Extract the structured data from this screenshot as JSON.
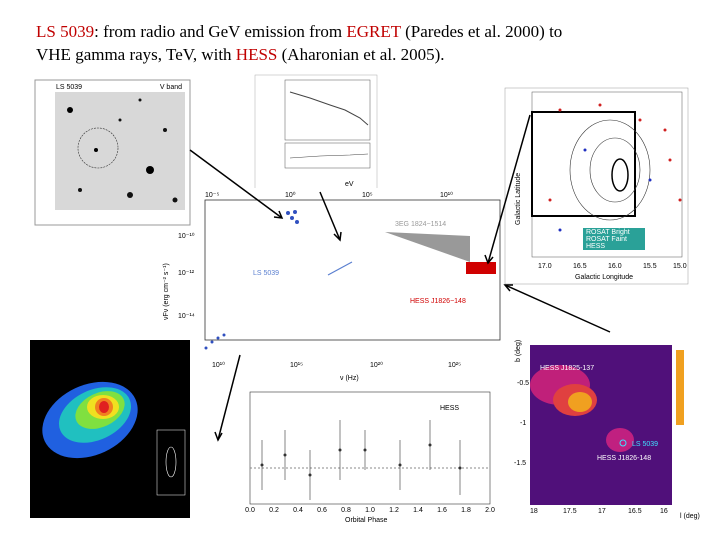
{
  "header": {
    "lines": [
      [
        {
          "text": "LS 5039",
          "highlight": true
        },
        {
          "text": ": from radio and GeV emission from ",
          "highlight": false
        },
        {
          "text": "EGRET",
          "highlight": true
        },
        {
          "text": " (Paredes et al. 2000) to",
          "highlight": false
        }
      ],
      [
        {
          "text": "VHE gamma rays, TeV, with ",
          "highlight": false
        },
        {
          "text": "HESS",
          "highlight": true
        },
        {
          "text": " (Aharonian et al. 2005).",
          "highlight": false
        }
      ]
    ]
  },
  "optical": {
    "title": "LS 5039",
    "band": "V band"
  },
  "sed": {
    "top_ticks": [
      "10⁻⁵",
      "10⁰",
      "10⁵",
      "10¹⁰"
    ],
    "top_label": "eV",
    "left_ticks": [
      "10⁻¹⁰",
      "10⁻¹²",
      "10⁻¹⁴"
    ],
    "bottom_ticks": [
      "10¹⁰",
      "10¹⁵",
      "10²⁰",
      "10²⁵"
    ],
    "x_label": "ν (Hz)",
    "y_label": "νFν (erg cm⁻² s⁻¹)",
    "egret": "3EG 1824−1514",
    "source": "LS 5039",
    "hess": "HESS J1826−148"
  },
  "xray_map": {
    "y_label": "Galactic Latitude",
    "x_label": "Galactic Longitude",
    "x_ticks": [
      "17.0",
      "16.5",
      "16.0",
      "15.5",
      "15.0"
    ],
    "legend": [
      "ROSAT Bright",
      "ROSAT Faint",
      "HESS"
    ]
  },
  "lightcurve": {
    "label": "HESS",
    "x_label": "Orbital Phase",
    "x_ticks": [
      "0.0",
      "0.2",
      "0.4",
      "0.6",
      "0.8",
      "1.0",
      "1.2",
      "1.4",
      "1.6",
      "1.8",
      "2.0"
    ]
  },
  "hess_map": {
    "y_label": "b (deg)",
    "x_label": "l (deg)",
    "source1": "HESS J1825-137",
    "source2": "LS 5039",
    "source3": "HESS J1826-148",
    "x_ticks": [
      "18",
      "17.5",
      "17",
      "16.5",
      "16"
    ],
    "y_ticks": [
      "-0.5",
      "-1",
      "-1.5"
    ]
  }
}
